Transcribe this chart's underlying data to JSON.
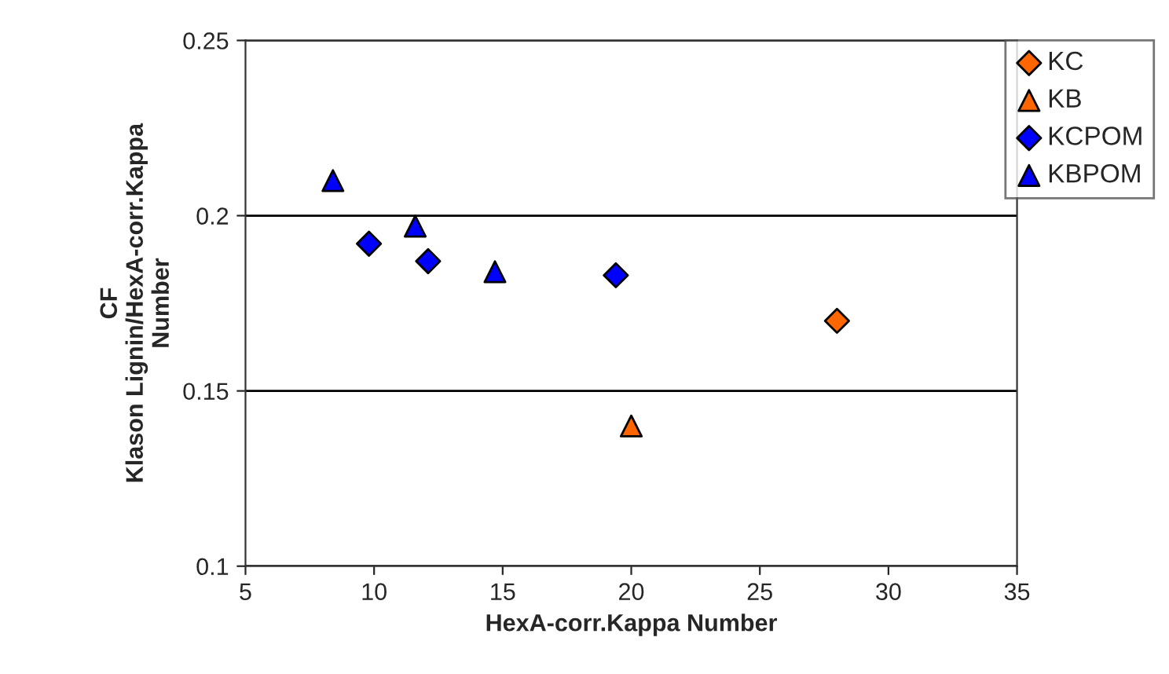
{
  "chart_data": {
    "type": "scatter",
    "xlabel": "HexA-corr.Kappa Number",
    "ylabel": "CF\nKlason Lignin/HexA-corr.Kappa\nNumber",
    "series": [
      {
        "name": "KC",
        "color": "#ff6600",
        "marker": "diamond",
        "x": [
          28
        ],
        "values": [
          0.17
        ]
      },
      {
        "name": "KB",
        "color": "#ff6600",
        "marker": "triangle",
        "x": [
          20
        ],
        "values": [
          0.14
        ]
      },
      {
        "name": "KCPOM",
        "color": "#0000ff",
        "marker": "diamond",
        "x": [
          9.8,
          12.1,
          19.4
        ],
        "values": [
          0.192,
          0.187,
          0.183
        ]
      },
      {
        "name": "KBPOM",
        "color": "#0000ff",
        "marker": "triangle",
        "x": [
          8.4,
          11.6,
          14.7
        ],
        "values": [
          0.21,
          0.197,
          0.184
        ]
      }
    ],
    "xlim": [
      5,
      35
    ],
    "xticks": [
      5,
      10,
      15,
      20,
      25,
      30,
      35
    ],
    "ylim": [
      0.1,
      0.25
    ],
    "yticks": [
      0.1,
      0.15,
      0.2,
      0.25
    ],
    "grid": "y",
    "legend": "top right"
  }
}
